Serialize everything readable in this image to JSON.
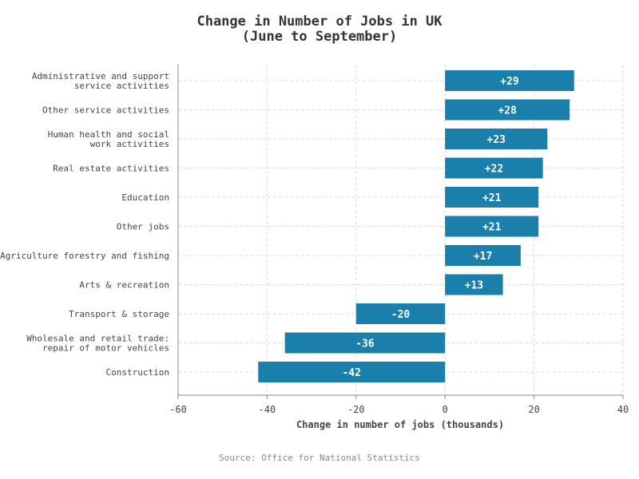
{
  "chart_data": {
    "type": "bar",
    "orientation": "horizontal",
    "title_lines": [
      "Change in Number of Jobs in UK",
      "(June to September)"
    ],
    "categories": [
      [
        "Administrative and support",
        "service activities"
      ],
      [
        "Other service activities"
      ],
      [
        "Human health and social",
        "work activities"
      ],
      [
        "Real estate activities"
      ],
      [
        "Education"
      ],
      [
        "Other jobs"
      ],
      [
        "Agriculture forestry and fishing"
      ],
      [
        "Arts & recreation"
      ],
      [
        "Transport & storage"
      ],
      [
        "Wholesale and retail trade:",
        "repair of motor vehicles"
      ],
      [
        "Construction"
      ]
    ],
    "values": [
      29,
      28,
      23,
      22,
      21,
      21,
      17,
      13,
      -20,
      -36,
      -42
    ],
    "value_labels": [
      "+29",
      "+28",
      "+23",
      "+22",
      "+21",
      "+21",
      "+17",
      "+13",
      "-20",
      "-36",
      "-42"
    ],
    "xlim": [
      -60,
      40
    ],
    "xticks": [
      -60,
      -40,
      -20,
      0,
      20,
      40
    ],
    "xlabel": "Change in number of jobs (thousands)",
    "bar_color": "#1a80ab",
    "grid": true
  },
  "footer": {
    "source": "Source: Office for National Statistics"
  }
}
